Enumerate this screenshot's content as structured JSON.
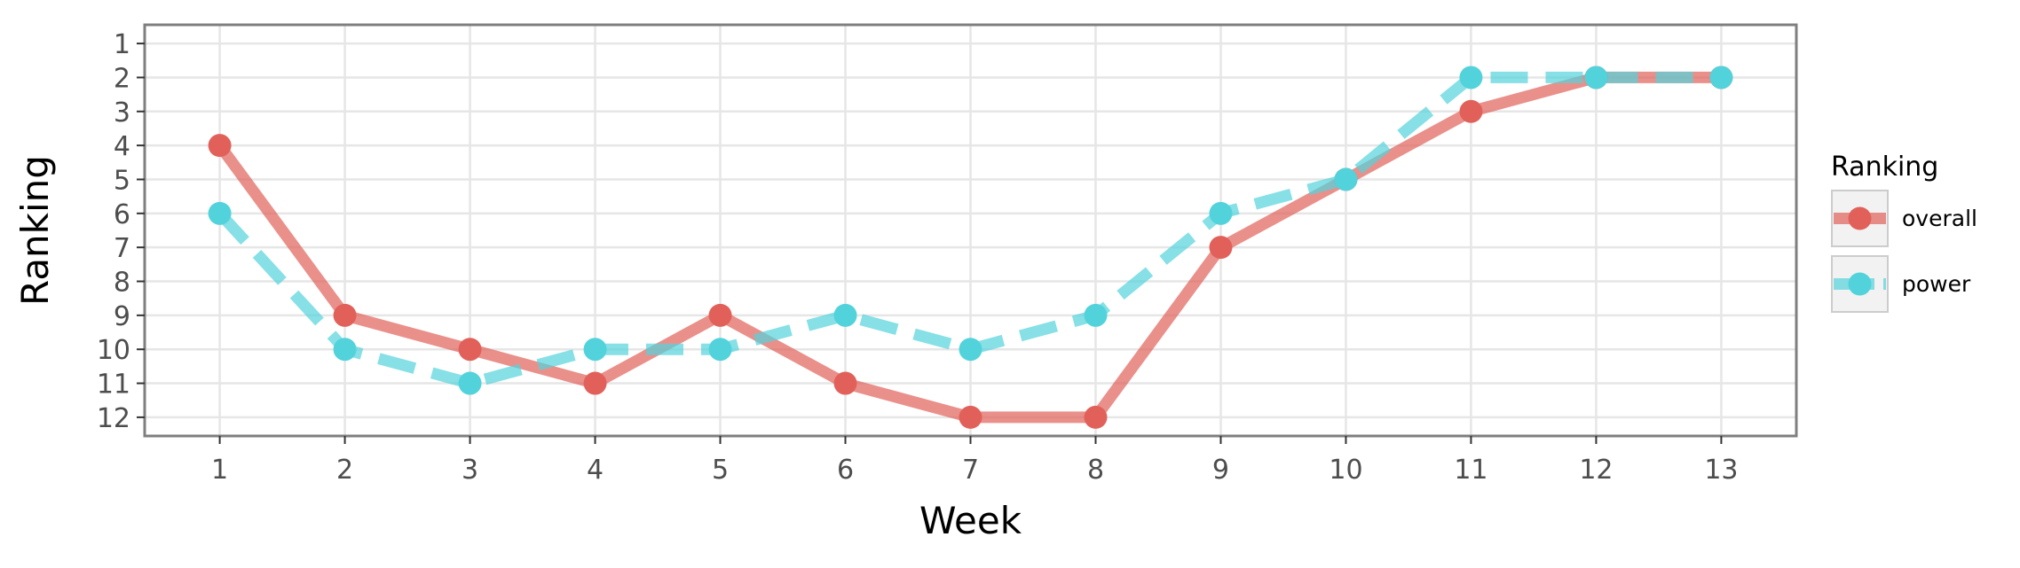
{
  "chart_data": {
    "type": "line",
    "xlabel": "Week",
    "ylabel": "Ranking",
    "x": [
      1,
      2,
      3,
      4,
      5,
      6,
      7,
      8,
      9,
      10,
      11,
      12,
      13
    ],
    "x_ticks": [
      "1",
      "2",
      "3",
      "4",
      "5",
      "6",
      "7",
      "8",
      "9",
      "10",
      "11",
      "12",
      "13"
    ],
    "y_ticks": [
      "1",
      "2",
      "3",
      "4",
      "5",
      "6",
      "7",
      "8",
      "9",
      "10",
      "11",
      "12"
    ],
    "xlim": [
      0.4,
      13.6
    ],
    "ylim": [
      12.55,
      0.45
    ],
    "y_reversed": true,
    "grid": true,
    "legend": {
      "title": "Ranking",
      "position": "right"
    },
    "series": [
      {
        "name": "overall",
        "color": "#E1615A",
        "dash": "solid",
        "values": [
          4,
          9,
          10,
          11,
          9,
          11,
          12,
          12,
          7,
          5,
          3,
          2,
          2
        ]
      },
      {
        "name": "power",
        "color": "#52D3DB",
        "dash": "dashed",
        "values": [
          6,
          10,
          11,
          10,
          10,
          9,
          10,
          9,
          6,
          5,
          2,
          2,
          2
        ]
      }
    ]
  }
}
